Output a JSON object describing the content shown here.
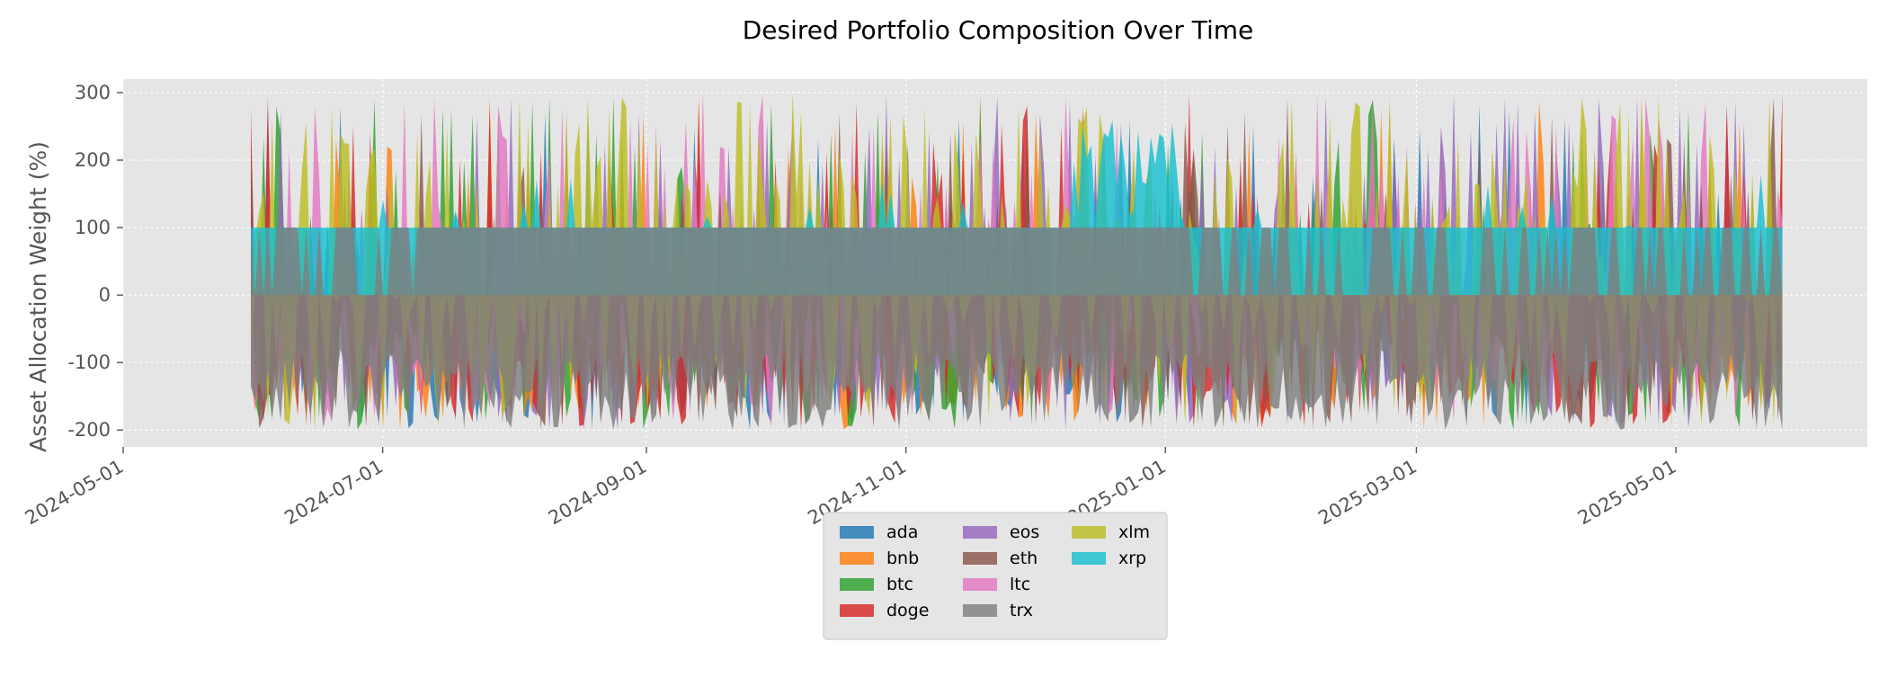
{
  "chart_data": {
    "type": "area",
    "title": "Desired Portfolio Composition Over Time",
    "xlabel": "",
    "ylabel": "Asset Allocation Weight (%)",
    "xlim": [
      "2024-05-01",
      "2025-06-15"
    ],
    "ylim": [
      -225,
      320
    ],
    "x_ticks": [
      "2024-05-01",
      "2024-07-01",
      "2024-09-01",
      "2024-11-01",
      "2025-01-01",
      "2025-03-01",
      "2025-05-01"
    ],
    "y_ticks": [
      -200,
      -100,
      0,
      100,
      200,
      300
    ],
    "grid": true,
    "legend_position": "bottom-center",
    "legend_columns": 3,
    "date_range": [
      "2024-05-31",
      "2025-05-26"
    ],
    "series": [
      {
        "name": "ada",
        "color": "#1f77b4"
      },
      {
        "name": "bnb",
        "color": "#ff7f0e"
      },
      {
        "name": "btc",
        "color": "#2ca02c"
      },
      {
        "name": "doge",
        "color": "#d62728"
      },
      {
        "name": "eos",
        "color": "#9467bd"
      },
      {
        "name": "eth",
        "color": "#8c564b"
      },
      {
        "name": "ltc",
        "color": "#e377c2"
      },
      {
        "name": "trx",
        "color": "#7f7f7f"
      },
      {
        "name": "xlm",
        "color": "#bcbd22"
      },
      {
        "name": "xrp",
        "color": "#17becf"
      }
    ]
  },
  "colors": {
    "plot_background": "#e5e5e5",
    "grid": "#ffffff",
    "text": "#555555",
    "title": "#000000"
  }
}
